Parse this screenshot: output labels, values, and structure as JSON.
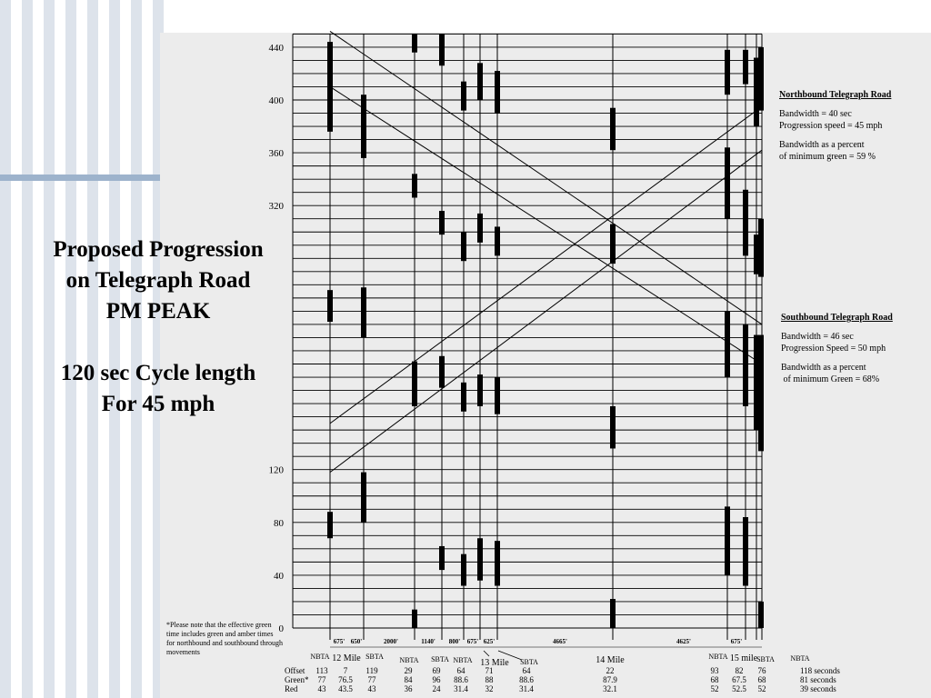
{
  "title": {
    "line1": "Proposed Progression",
    "line2": "on Telegraph Road",
    "line3": "PM PEAK",
    "line4": "120 sec Cycle length",
    "line5": "For 45 mph"
  },
  "northbound": {
    "heading": "Northbound Telegraph Road",
    "bandwidth": "Bandwidth = 40 sec",
    "speed": "Progression speed = 45 mph",
    "pct1": "Bandwidth as a percent",
    "pct2": "of minimum green = 59 %"
  },
  "southbound": {
    "heading": "Southbound Telegraph Road",
    "bandwidth": "Bandwidth = 46 sec",
    "speed": "Progression Speed = 50 mph",
    "pct1": "Bandwidth as a percent",
    "pct2": " of minimum Green = 68%"
  },
  "note": "*Please note that the effective green time includes green and amber times for northbound and southbound through movements",
  "row_labels": [
    "Offset",
    "Green*",
    "Red"
  ],
  "colors": {
    "ink": "#000000",
    "stripe": "#dde3eb",
    "accent_bar": "#9db3cc",
    "panel": "#ececec"
  },
  "chart_data": {
    "type": "time-space diagram",
    "title": "",
    "xlabel": "",
    "ylabel": "",
    "cycle_length": 120,
    "ylim": [
      0,
      450
    ],
    "y_ticks": [
      0,
      40,
      80,
      120,
      320,
      360,
      400,
      440
    ],
    "distance_labels": [
      "675'",
      "650'",
      "2000'",
      "1140'",
      "800'",
      "675'",
      "625'",
      "4665'",
      "4625'",
      "675'"
    ],
    "signal_labels": [
      "NBTA",
      "12 Mile",
      "SBTA",
      "NBTA",
      "SBTA",
      "NBTA",
      "13 Mile",
      "SBTA",
      "14 Mile",
      "NBTA",
      "15 mile",
      "SBTA",
      "NBTA"
    ],
    "intersections": [
      {
        "offset": "113",
        "green": "77",
        "red": "43"
      },
      {
        "offset": "7",
        "green": "76.5",
        "red": "43.5"
      },
      {
        "offset": "119",
        "green": "77",
        "red": "43"
      },
      {
        "offset": "29",
        "green": "84",
        "red": "36"
      },
      {
        "offset": "69",
        "green": "96",
        "red": "24"
      },
      {
        "offset": "64",
        "green": "88.6",
        "red": "31.4"
      },
      {
        "offset": "71",
        "green": "88",
        "red": "32"
      },
      {
        "offset": "64",
        "green": "88.6",
        "red": "31.4"
      },
      {
        "offset": "22",
        "green": "87.9",
        "red": "32.1"
      },
      {
        "offset": "93",
        "green": "68",
        "red": "52"
      },
      {
        "offset": "82",
        "green": "67.5",
        "red": "52.5"
      },
      {
        "offset": "76",
        "green": "68",
        "red": "52"
      },
      {
        "offset": "118 seconds",
        "green": "81 seconds",
        "red": "39 seconds"
      }
    ],
    "northbound": {
      "bandwidth_sec": 40,
      "speed_mph": 45,
      "pct_min_green": 59
    },
    "southbound": {
      "bandwidth_sec": 46,
      "speed_mph": 50,
      "pct_min_green": 68
    }
  }
}
